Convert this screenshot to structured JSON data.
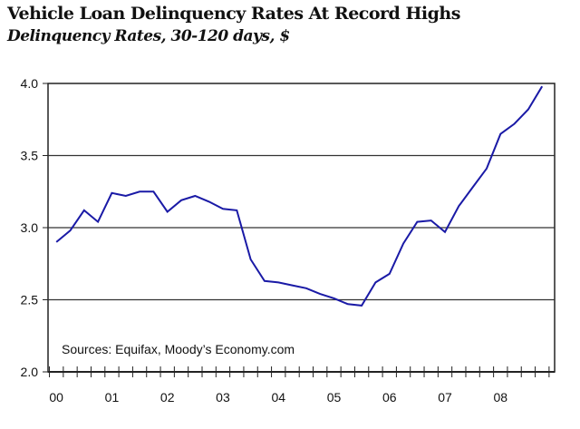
{
  "chart_data": {
    "type": "line",
    "title": "Vehicle Loan Delinquency Rates At Record Highs",
    "subtitle": "Delinquency Rates, 30-120 days, $",
    "xlabel": "",
    "ylabel": "",
    "ylim": [
      2.0,
      4.0
    ],
    "yticks": [
      "2.0",
      "2.5",
      "3.0",
      "3.5",
      "4.0"
    ],
    "xtick_labels": [
      "00",
      "01",
      "02",
      "03",
      "04",
      "05",
      "06",
      "07",
      "08"
    ],
    "grid": "horizontal",
    "annotation": "Sources: Equifax, Moody’s Economy.com",
    "series": [
      {
        "name": "Delinquency rate",
        "color": "#1a1aa6",
        "frequency": "quarterly",
        "start": "2000Q1",
        "values": [
          2.9,
          2.98,
          3.12,
          3.04,
          3.24,
          3.22,
          3.25,
          3.25,
          3.11,
          3.19,
          3.22,
          3.18,
          3.13,
          3.12,
          2.78,
          2.63,
          2.62,
          2.6,
          2.58,
          2.54,
          2.51,
          2.47,
          2.46,
          2.62,
          2.68,
          2.89,
          3.04,
          3.05,
          2.97,
          3.15,
          3.28,
          3.41,
          3.65,
          3.72,
          3.82,
          3.98
        ]
      }
    ]
  }
}
